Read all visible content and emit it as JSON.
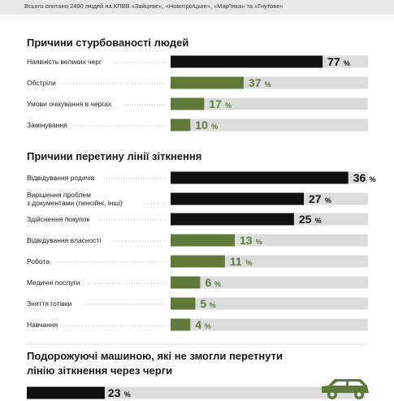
{
  "header": {
    "subtitle": "Всього опитано 2400 людей на КПВВ «Зайцеве», «Новотроїцьке», «Мар'їнка» та «Гнутове»"
  },
  "colors": {
    "black": "#111111",
    "green": "#5f7a38",
    "track": "#dcdcdc",
    "car": "#5f7a38"
  },
  "chart_data": [
    {
      "type": "bar",
      "title": "Причини стурбованості людей",
      "unit": "%",
      "xlim": [
        0,
        100
      ],
      "categories": [
        "Наявність великих черг",
        "Обстріли",
        "Умови очікування в чергах",
        "Замінування"
      ],
      "values": [
        77,
        37,
        17,
        10
      ],
      "bar_colors": [
        "black",
        "green",
        "green",
        "green"
      ]
    },
    {
      "type": "bar",
      "title": "Причини перетину лінії зіткнення",
      "unit": "%",
      "xlim": [
        0,
        40
      ],
      "categories": [
        "Відвідування родичів",
        "Вирішення проблем\nз документами (пенсійні, інші)",
        "Здійснення покупок",
        "Відвідування власності",
        "Робота",
        "Медичні послуги",
        "Зняття готівки",
        "Навчання"
      ],
      "values": [
        36,
        27,
        25,
        13,
        11,
        6,
        5,
        4
      ],
      "bar_colors": [
        "black",
        "black",
        "black",
        "green",
        "green",
        "green",
        "green",
        "green"
      ]
    },
    {
      "type": "bar",
      "title": "Подорожуючі машиною, які не змогли перетнути\nлінію зіткнення через черги",
      "unit": "%",
      "xlim": [
        0,
        100
      ],
      "categories": [
        ""
      ],
      "values": [
        23
      ],
      "bar_colors": [
        "black"
      ]
    }
  ]
}
